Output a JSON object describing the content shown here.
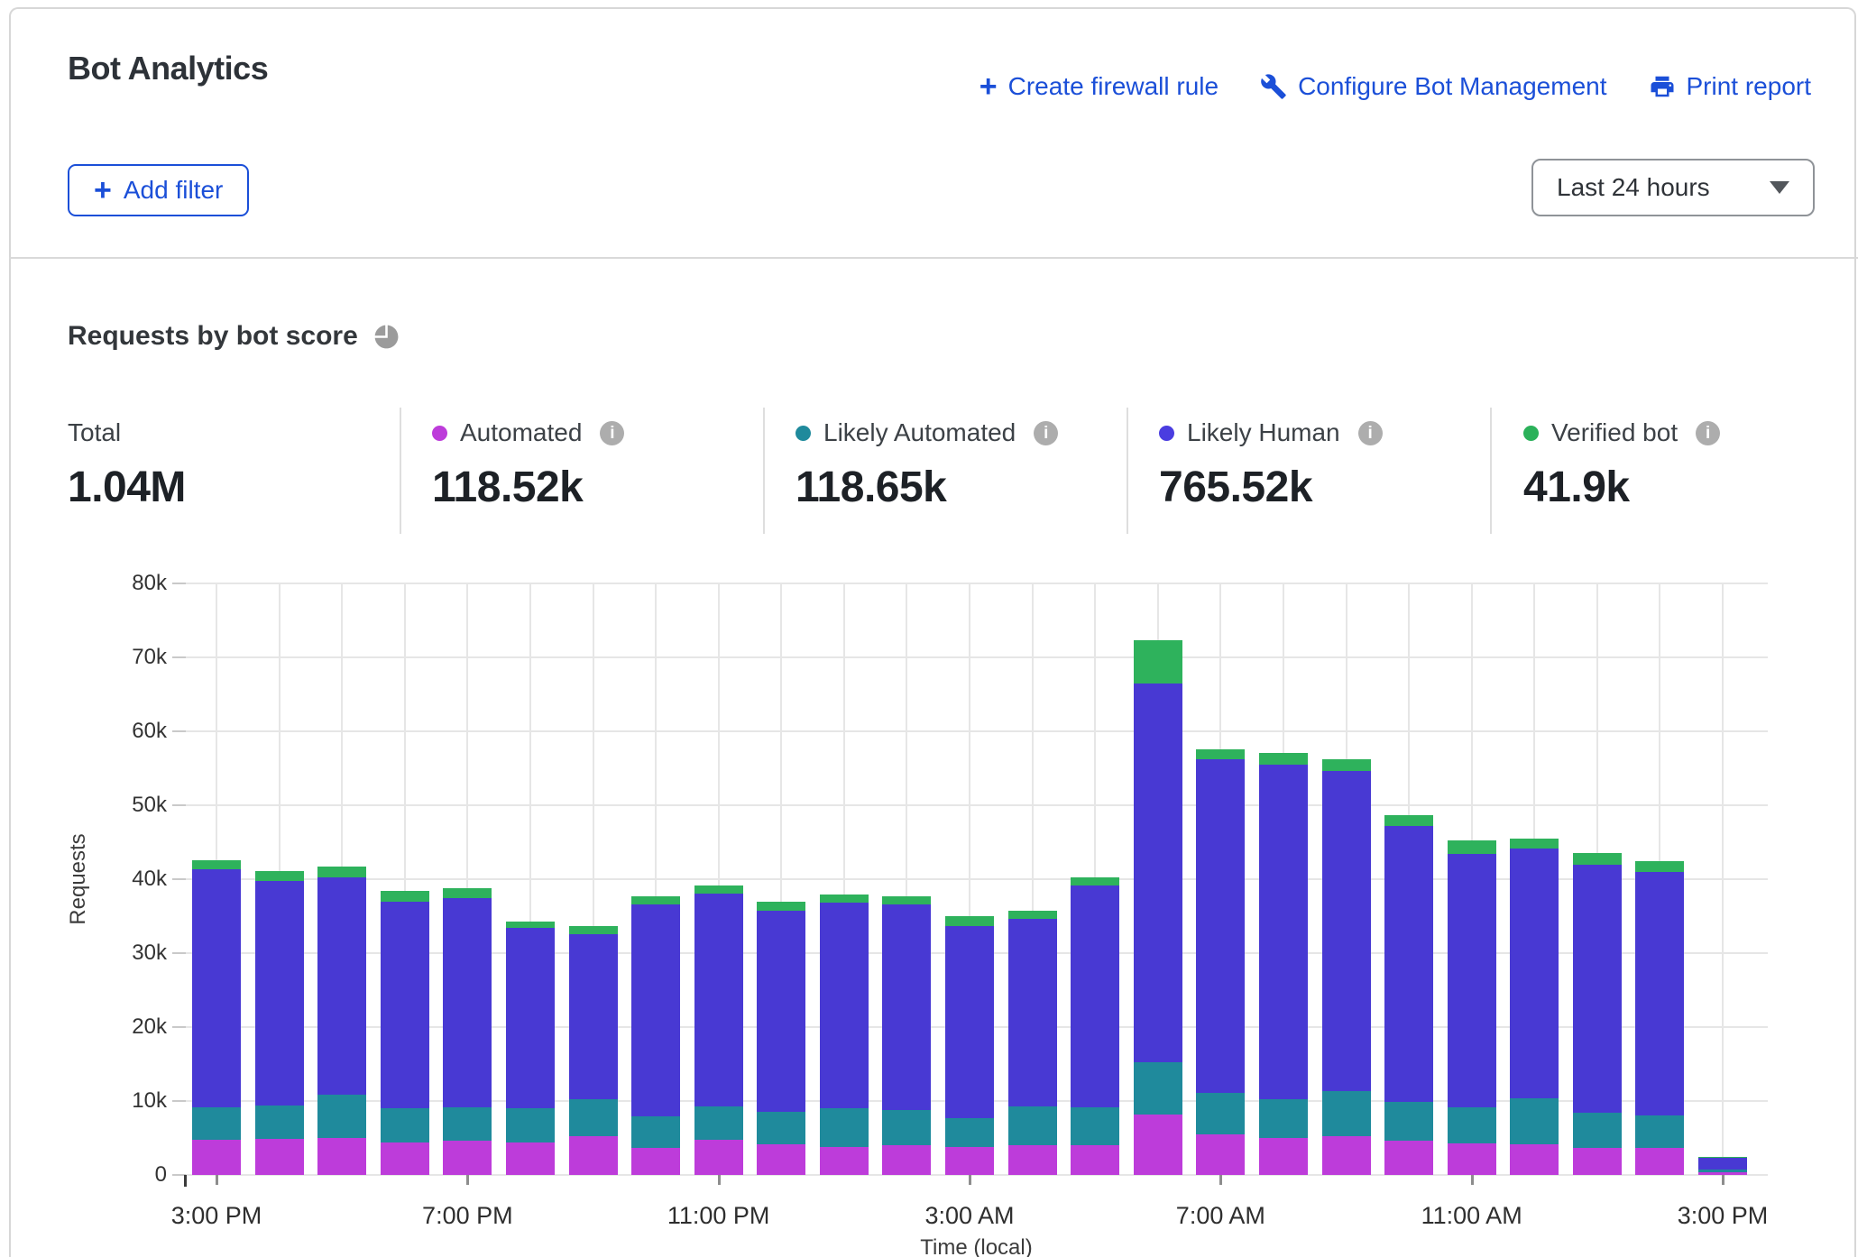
{
  "header": {
    "title": "Bot Analytics",
    "actions": [
      {
        "label": "Create firewall rule",
        "icon": "plus"
      },
      {
        "label": "Configure Bot Management",
        "icon": "wrench"
      },
      {
        "label": "Print report",
        "icon": "printer"
      }
    ],
    "add_filter_label": "Add filter",
    "time_range_value": "Last 24 hours"
  },
  "section": {
    "title": "Requests by bot score"
  },
  "stats": [
    {
      "label": "Total",
      "value": "1.04M"
    },
    {
      "label": "Automated",
      "value": "118.52k",
      "color": "#bd3cda"
    },
    {
      "label": "Likely Automated",
      "value": "118.65k",
      "color": "#1f8a9c"
    },
    {
      "label": "Likely Human",
      "value": "765.52k",
      "color": "#4a3de0"
    },
    {
      "label": "Verified bot",
      "value": "41.9k",
      "color": "#2bb15a"
    }
  ],
  "chart_data": {
    "type": "bar",
    "stacked": true,
    "title": "Requests by bot score",
    "xlabel": "Time (local)",
    "ylabel": "Requests",
    "ylim": [
      0,
      80000
    ],
    "grid": true,
    "legend_position": "top-stats-row",
    "yticks": [
      0,
      10000,
      20000,
      30000,
      40000,
      50000,
      60000,
      70000,
      80000
    ],
    "ytick_labels": [
      "0",
      "10k",
      "20k",
      "30k",
      "40k",
      "50k",
      "60k",
      "70k",
      "80k"
    ],
    "x": [
      "3:00 PM",
      "4:00 PM",
      "5:00 PM",
      "6:00 PM",
      "7:00 PM",
      "8:00 PM",
      "9:00 PM",
      "10:00 PM",
      "11:00 PM",
      "12:00 AM",
      "1:00 AM",
      "2:00 AM",
      "3:00 AM",
      "4:00 AM",
      "5:00 AM",
      "6:00 AM",
      "7:00 AM",
      "8:00 AM",
      "9:00 AM",
      "10:00 AM",
      "11:00 AM",
      "12:00 PM",
      "1:00 PM",
      "2:00 PM",
      "3:00 PM"
    ],
    "xtick_indices": [
      0,
      4,
      8,
      12,
      16,
      20,
      24
    ],
    "xtick_labels": [
      "3:00 PM",
      "7:00 PM",
      "11:00 PM",
      "3:00 AM",
      "7:00 AM",
      "11:00 AM",
      "3:00 PM"
    ],
    "series": [
      {
        "name": "Automated",
        "color": "#bd3cda",
        "values": [
          4700,
          4900,
          5000,
          4400,
          4600,
          4400,
          5200,
          3600,
          4800,
          4100,
          3800,
          4000,
          3800,
          4000,
          4000,
          8200,
          5500,
          5000,
          5300,
          4600,
          4300,
          4200,
          3700,
          3700,
          400
        ]
      },
      {
        "name": "Likely Automated",
        "color": "#1f8a9c",
        "values": [
          4500,
          4500,
          5900,
          4600,
          4600,
          4600,
          5100,
          4300,
          4500,
          4400,
          5200,
          4800,
          3900,
          5300,
          5200,
          7100,
          5600,
          5200,
          6100,
          5300,
          4900,
          6200,
          4700,
          4300,
          300
        ]
      },
      {
        "name": "Likely Human",
        "color": "#4839d3",
        "values": [
          32100,
          30300,
          29300,
          28000,
          28200,
          24400,
          22300,
          28700,
          28700,
          27200,
          27800,
          27800,
          26000,
          25300,
          30000,
          51200,
          45100,
          45300,
          43200,
          37300,
          34200,
          33700,
          33600,
          33000,
          1700
        ]
      },
      {
        "name": "Verified bot",
        "color": "#2eb25c",
        "values": [
          1300,
          1400,
          1500,
          1400,
          1400,
          900,
          1000,
          1100,
          1100,
          1200,
          1100,
          1100,
          1300,
          1100,
          1100,
          5800,
          1400,
          1600,
          1600,
          1400,
          1800,
          1400,
          1500,
          1500,
          100
        ]
      }
    ]
  }
}
